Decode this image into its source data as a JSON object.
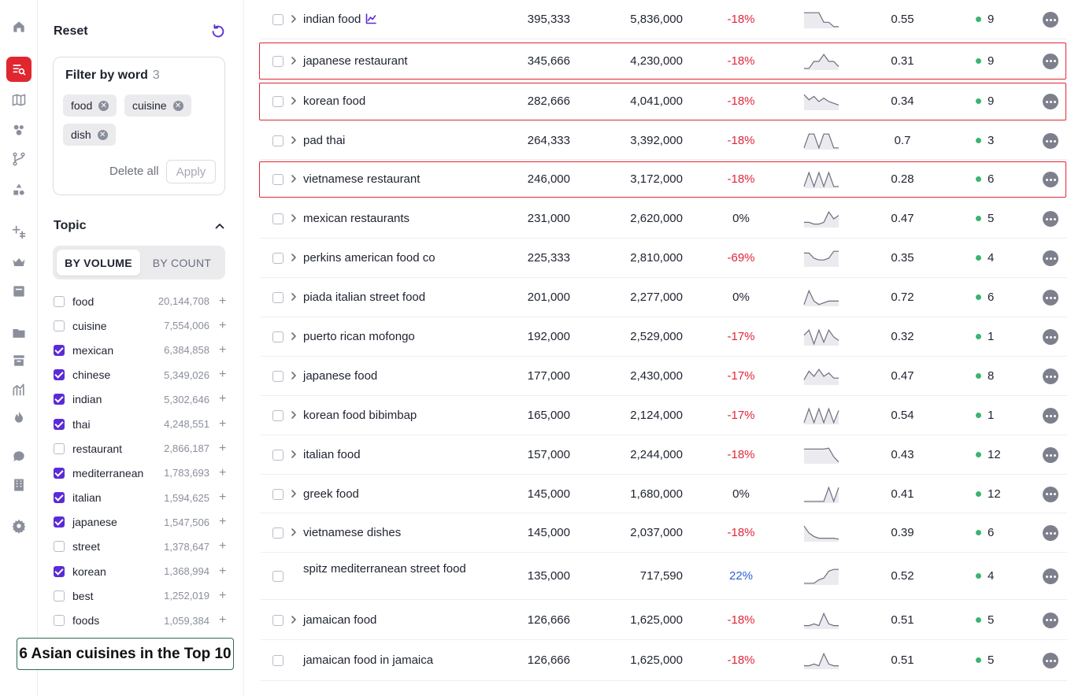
{
  "rail": {
    "icons": [
      "home-icon",
      "keyword-search-icon",
      "map-icon",
      "audience-icon",
      "flow-icon",
      "shapes-icon",
      "plus-grid-icon",
      "crown-icon",
      "archive-box-icon",
      "folder-icon",
      "inbox-icon",
      "analytics-icon",
      "flame-icon",
      "chat-icon",
      "building-icon",
      "gear-icon"
    ],
    "active": "keyword-search-icon",
    "accent": "#e0262f"
  },
  "filters": {
    "reset_label": "Reset",
    "filter_by_word_title": "Filter by word",
    "filter_count": "3",
    "chips": [
      "food",
      "cuisine",
      "dish"
    ],
    "delete_all_label": "Delete all",
    "apply_label": "Apply",
    "topic_label": "Topic",
    "toggle": {
      "by_volume": "BY VOLUME",
      "by_count": "BY COUNT",
      "selected": "BY VOLUME"
    },
    "topics": [
      {
        "name": "food",
        "count": "20,144,708",
        "checked": false
      },
      {
        "name": "cuisine",
        "count": "7,554,006",
        "checked": false
      },
      {
        "name": "mexican",
        "count": "6,384,858",
        "checked": true
      },
      {
        "name": "chinese",
        "count": "5,349,026",
        "checked": true
      },
      {
        "name": "indian",
        "count": "5,302,646",
        "checked": true
      },
      {
        "name": "thai",
        "count": "4,248,551",
        "checked": true
      },
      {
        "name": "restaurant",
        "count": "2,866,187",
        "checked": false
      },
      {
        "name": "mediterranean",
        "count": "1,783,693",
        "checked": true
      },
      {
        "name": "italian",
        "count": "1,594,625",
        "checked": true
      },
      {
        "name": "japanese",
        "count": "1,547,506",
        "checked": true
      },
      {
        "name": "street",
        "count": "1,378,647",
        "checked": false
      },
      {
        "name": "korean",
        "count": "1,368,994",
        "checked": true
      },
      {
        "name": "best",
        "count": "1,252,019",
        "checked": false
      },
      {
        "name": "foods",
        "count": "1,059,384",
        "checked": false
      }
    ],
    "plus_symbol": "+",
    "checkbox_color": "#5b2bd6"
  },
  "callout": {
    "text": "6 Asian cuisines in the Top 10"
  },
  "table": {
    "rows": [
      {
        "keyword": "indian food",
        "trend_icon": true,
        "expandable": true,
        "volume": "395,333",
        "total": "5,836,000",
        "change": "-18%",
        "change_type": "neg",
        "spark": [
          0.9,
          0.9,
          0.9,
          0.9,
          0.35,
          0.35,
          0.1,
          0.1
        ],
        "kd": "0.55",
        "results": "9",
        "highlight": false
      },
      {
        "keyword": "japanese restaurant",
        "trend_icon": false,
        "expandable": true,
        "volume": "345,666",
        "total": "4,230,000",
        "change": "-18%",
        "change_type": "neg",
        "spark": [
          0.1,
          0.1,
          0.5,
          0.5,
          0.9,
          0.5,
          0.5,
          0.2
        ],
        "kd": "0.31",
        "results": "9",
        "highlight": true
      },
      {
        "keyword": "korean food",
        "trend_icon": false,
        "expandable": true,
        "volume": "282,666",
        "total": "4,041,000",
        "change": "-18%",
        "change_type": "neg",
        "spark": [
          0.9,
          0.6,
          0.8,
          0.5,
          0.7,
          0.5,
          0.4,
          0.3
        ],
        "kd": "0.34",
        "results": "9",
        "highlight": true
      },
      {
        "keyword": "pad thai",
        "trend_icon": false,
        "expandable": true,
        "volume": "264,333",
        "total": "3,392,000",
        "change": "-18%",
        "change_type": "neg",
        "spark": [
          0.1,
          0.9,
          0.9,
          0.1,
          0.9,
          0.9,
          0.1,
          0.1
        ],
        "kd": "0.7",
        "results": "3",
        "highlight": false
      },
      {
        "keyword": "vietnamese restaurant",
        "trend_icon": false,
        "expandable": true,
        "volume": "246,000",
        "total": "3,172,000",
        "change": "-18%",
        "change_type": "neg",
        "spark": [
          0.1,
          0.9,
          0.1,
          0.9,
          0.1,
          0.9,
          0.1,
          0.1
        ],
        "kd": "0.28",
        "results": "6",
        "highlight": true
      },
      {
        "keyword": "mexican restaurants",
        "trend_icon": false,
        "expandable": true,
        "volume": "231,000",
        "total": "2,620,000",
        "change": "0%",
        "change_type": "zero",
        "spark": [
          0.3,
          0.3,
          0.2,
          0.2,
          0.3,
          0.9,
          0.5,
          0.7
        ],
        "kd": "0.47",
        "results": "5",
        "highlight": false
      },
      {
        "keyword": "perkins american food co",
        "trend_icon": false,
        "expandable": true,
        "volume": "225,333",
        "total": "2,810,000",
        "change": "-69%",
        "change_type": "neg",
        "spark": [
          0.8,
          0.8,
          0.5,
          0.4,
          0.4,
          0.5,
          0.9,
          0.9
        ],
        "kd": "0.35",
        "results": "4",
        "highlight": false
      },
      {
        "keyword": "piada italian street food",
        "trend_icon": false,
        "expandable": true,
        "volume": "201,000",
        "total": "2,277,000",
        "change": "0%",
        "change_type": "zero",
        "spark": [
          0.1,
          0.9,
          0.3,
          0.1,
          0.2,
          0.3,
          0.3,
          0.3
        ],
        "kd": "0.72",
        "results": "6",
        "highlight": false
      },
      {
        "keyword": "puerto rican mofongo",
        "trend_icon": false,
        "expandable": true,
        "volume": "192,000",
        "total": "2,529,000",
        "change": "-17%",
        "change_type": "neg",
        "spark": [
          0.6,
          0.9,
          0.1,
          0.9,
          0.2,
          0.9,
          0.5,
          0.3
        ],
        "kd": "0.32",
        "results": "1",
        "highlight": false
      },
      {
        "keyword": "japanese food",
        "trend_icon": false,
        "expandable": true,
        "volume": "177,000",
        "total": "2,430,000",
        "change": "-17%",
        "change_type": "neg",
        "spark": [
          0.3,
          0.8,
          0.5,
          0.9,
          0.5,
          0.7,
          0.4,
          0.4
        ],
        "kd": "0.47",
        "results": "8",
        "highlight": false
      },
      {
        "keyword": "korean food bibimbap",
        "trend_icon": false,
        "expandable": true,
        "volume": "165,000",
        "total": "2,124,000",
        "change": "-17%",
        "change_type": "neg",
        "spark": [
          0.1,
          0.9,
          0.1,
          0.9,
          0.1,
          0.9,
          0.1,
          0.8
        ],
        "kd": "0.54",
        "results": "1",
        "highlight": false
      },
      {
        "keyword": "italian food",
        "trend_icon": false,
        "expandable": true,
        "volume": "157,000",
        "total": "2,244,000",
        "change": "-18%",
        "change_type": "neg",
        "spark": [
          0.85,
          0.85,
          0.85,
          0.85,
          0.85,
          0.9,
          0.4,
          0.1
        ],
        "kd": "0.43",
        "results": "12",
        "highlight": false
      },
      {
        "keyword": "greek food",
        "trend_icon": false,
        "expandable": true,
        "volume": "145,000",
        "total": "1,680,000",
        "change": "0%",
        "change_type": "zero",
        "spark": [
          0.1,
          0.1,
          0.1,
          0.1,
          0.1,
          0.9,
          0.1,
          0.9
        ],
        "kd": "0.41",
        "results": "12",
        "highlight": false
      },
      {
        "keyword": "vietnamese dishes",
        "trend_icon": false,
        "expandable": true,
        "volume": "145,000",
        "total": "2,037,000",
        "change": "-18%",
        "change_type": "neg",
        "spark": [
          0.9,
          0.5,
          0.3,
          0.2,
          0.2,
          0.2,
          0.2,
          0.15
        ],
        "kd": "0.39",
        "results": "6",
        "highlight": false
      },
      {
        "keyword": "spitz mediterranean street food",
        "trend_icon": false,
        "expandable": false,
        "volume": "135,000",
        "total": "717,590",
        "change": "22%",
        "change_type": "pos",
        "spark": [
          0.1,
          0.1,
          0.1,
          0.3,
          0.4,
          0.8,
          0.9,
          0.9
        ],
        "kd": "0.52",
        "results": "4",
        "highlight": false
      },
      {
        "keyword": "jamaican food",
        "trend_icon": false,
        "expandable": true,
        "volume": "126,666",
        "total": "1,625,000",
        "change": "-18%",
        "change_type": "neg",
        "spark": [
          0.2,
          0.2,
          0.3,
          0.2,
          0.9,
          0.3,
          0.2,
          0.2
        ],
        "kd": "0.51",
        "results": "5",
        "highlight": false
      },
      {
        "keyword": "jamaican food in jamaica",
        "trend_icon": false,
        "expandable": false,
        "volume": "126,666",
        "total": "1,625,000",
        "change": "-18%",
        "change_type": "neg",
        "spark": [
          0.2,
          0.2,
          0.3,
          0.2,
          0.9,
          0.3,
          0.2,
          0.2
        ],
        "kd": "0.51",
        "results": "5",
        "highlight": false
      }
    ],
    "colors": {
      "negative": "#e0263a",
      "positive": "#2f5fd6",
      "dot": "#3cb371",
      "highlight": "#e0262f"
    }
  }
}
